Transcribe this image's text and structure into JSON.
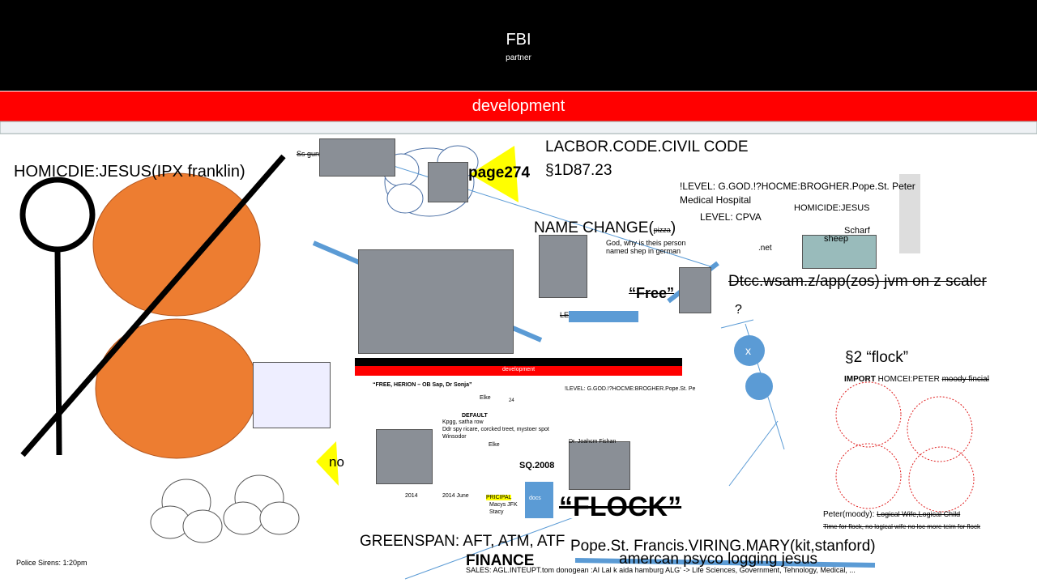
{
  "header": {
    "title": "FBI",
    "subtitle": "partner",
    "banner": "development"
  },
  "texts": {
    "homicide": "HOMICDIE:JESUS(IPX franklin)",
    "ss_gun": "Ss gun",
    "page": "page274",
    "code_line1": "LACBOR.CODE.CIVIL CODE",
    "code_line2": "§1D87.23",
    "level_line1": "!LEVEL: G.GOD.!?HOCME:BROGHER.Pope.St. Peter",
    "level_line2": "Medical Hospital",
    "level_line3": "LEVEL: CPVA",
    "homicide_jesus": "HOMICIDE:JESUS",
    "scharf": "Scharf",
    "sheep": "sheep",
    "net": ".net",
    "name_change": "NAME CHANGE(",
    "pizza": "pizza",
    "paren": ")",
    "god_why": "God, why is theis person named shep in german",
    "free": "“Free”",
    "le": "LE",
    "dtcc": "Dtcc.wsam.z/app(zos) jvm on z scaler",
    "question": "?",
    "x": "x",
    "flock_section": "§2 “flock”",
    "import": "IMPORT",
    "homcei": "HOMCEI:PETER",
    "moody": "moody fincial",
    "no": "no",
    "sirens": "Police Sirens: 1:20pm",
    "greenspan": "GREENSPAN: AFT, ATM, ATF",
    "finance": "FINANCE",
    "pope": "Pope.St. Francis.VIRING.MARY(kit,stanford)",
    "amercan": "amercan psyco logging jesus",
    "sales": "SALES: AGL.INTEUPT.tom donogean :AI Lal k aida hamburg  ALG' -> Life Sciences, Government, Tehnology, Medical, ...",
    "peter": "Peter(moody):",
    "logical": "Logical Wife,Logical Child",
    "time_for_flock": "Time for flock, no logical wife no loc more teim for flock"
  },
  "inner": {
    "banner": "development",
    "free": "“FREE, HERION – OB Sap, Dr Sonja”",
    "elke1": "Elke",
    "num": "24",
    "level": "!LEVEL: G.GOD.!?HOCME:BROGHER.Pope.St. Pe",
    "default": "DEFAULT",
    "kpgg": "Kpgg, satha row",
    "ddr": "Ddr spy ricare, corcked treet, mystoer spot",
    "winsodor": "Winsodor",
    "elke2": "Elke",
    "fishan": "Dr. Joahcm Fishan",
    "sq": "SQ.2008",
    "y2014": "2014",
    "june": "2014 June",
    "principal": "PRICIPAL",
    "macys": "Macys JFK",
    "stacy": "Stacy",
    "docs": "docs",
    "flock": "“FLOCK”"
  }
}
